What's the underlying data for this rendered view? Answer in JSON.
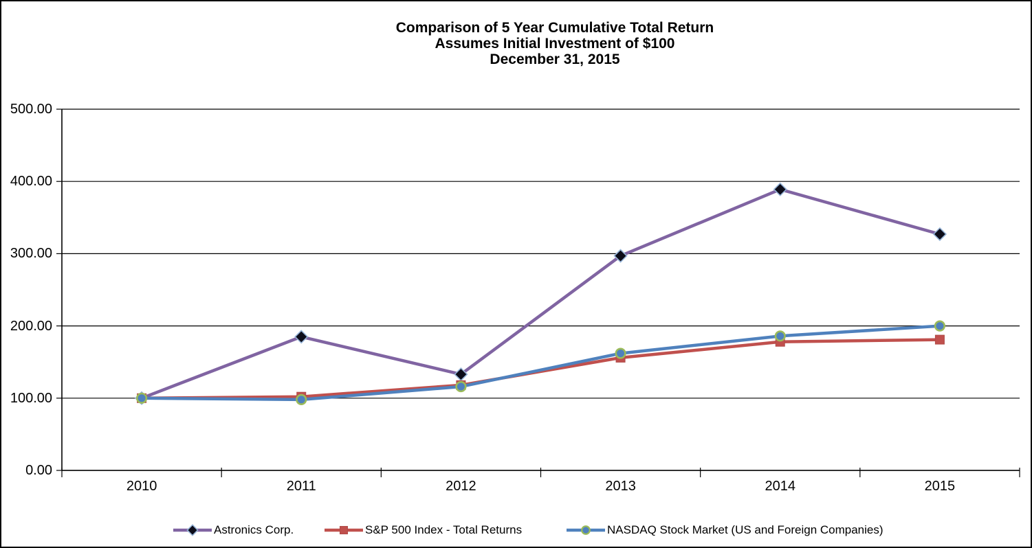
{
  "chart_data": {
    "type": "line",
    "title": "Comparison of 5 Year Cumulative Total Return",
    "subtitle": "Assumes Initial Investment of $100",
    "date_line": "December 31, 2015",
    "categories": [
      "2010",
      "2011",
      "2012",
      "2013",
      "2014",
      "2015"
    ],
    "series": [
      {
        "name": "Astronics Corp.",
        "values": [
          100,
          185,
          133,
          297,
          389,
          327
        ],
        "line_color": "#8064A2",
        "marker": "diamond",
        "marker_fill": "#0D0D1A",
        "marker_stroke": "#95B3D7"
      },
      {
        "name": "S&P 500 Index - Total Returns",
        "values": [
          100,
          102,
          118,
          156,
          178,
          181
        ],
        "line_color": "#C0504D",
        "marker": "square",
        "marker_fill": "#C0504D",
        "marker_stroke": "#B04A47"
      },
      {
        "name": "NASDAQ Stock Market (US and Foreign Companies)",
        "values": [
          100,
          98,
          116,
          162,
          186,
          200
        ],
        "line_color": "#4F81BD",
        "marker": "circle",
        "marker_fill": "#4F81BD",
        "marker_stroke": "#9BBB59"
      }
    ],
    "ylim": [
      0,
      500
    ],
    "yticks": [
      "500.00",
      "400.00",
      "300.00",
      "200.00",
      "100.00",
      "0.00"
    ],
    "ytick_values": [
      500,
      400,
      300,
      200,
      100,
      0
    ],
    "xlabel": "",
    "ylabel": "",
    "grid": "horizontal",
    "legend_position": "bottom",
    "axis_color": "#000000",
    "background": "#FFFFFF"
  }
}
